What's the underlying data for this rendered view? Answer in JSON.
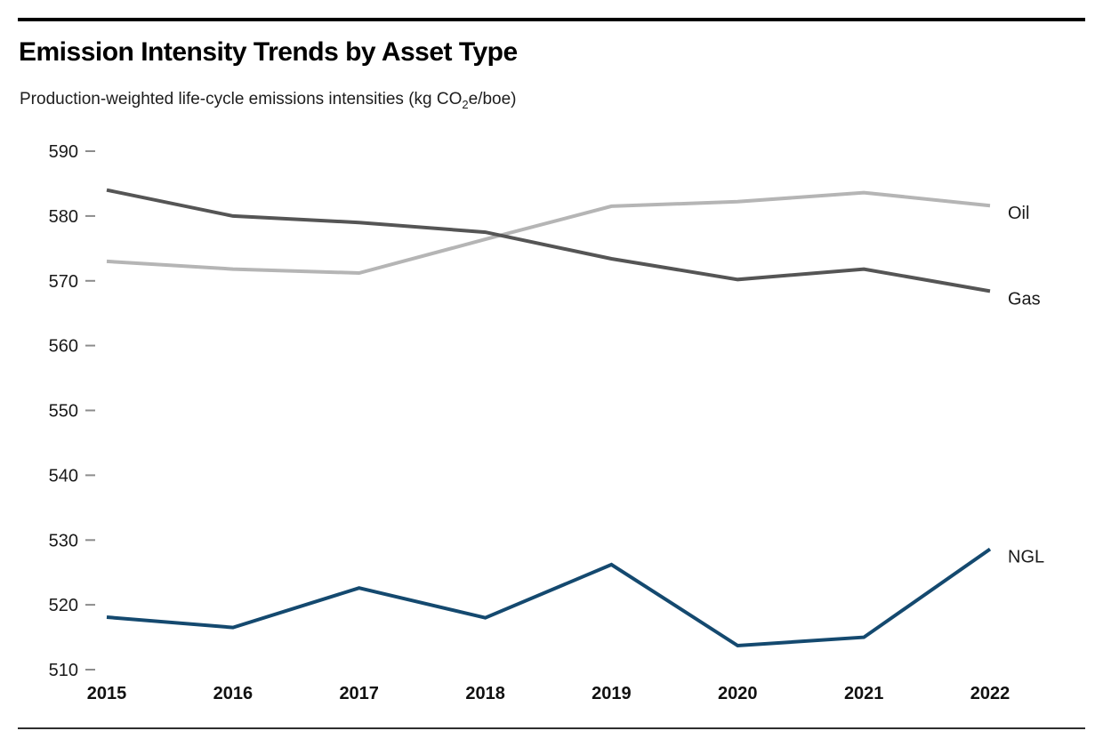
{
  "header": {
    "title": "Emission Intensity Trends by Asset Type",
    "subtitle_pre": "Production-weighted life-cycle emissions intensities (kg CO",
    "subtitle_sub": "2",
    "subtitle_post": "e/boe)"
  },
  "chart_data": {
    "type": "line",
    "title": "Emission Intensity Trends by Asset Type",
    "subtitle": "Production-weighted life-cycle emissions intensities (kg CO2e/boe)",
    "xlabel": "",
    "ylabel": "",
    "x": [
      2015,
      2016,
      2017,
      2018,
      2019,
      2020,
      2021,
      2022
    ],
    "x_tick_labels": [
      "2015",
      "2016",
      "2017",
      "2018",
      "2019",
      "2020",
      "2021",
      "2022"
    ],
    "ylim": [
      510,
      590
    ],
    "y_ticks": [
      590,
      580,
      570,
      560,
      550,
      540,
      530,
      520,
      510
    ],
    "grid": false,
    "legend_position": "direct-labels-right-of-lines",
    "series": [
      {
        "name": "Oil",
        "color": "#b5b5b5",
        "values": [
          573.0,
          571.8,
          571.2,
          576.4,
          581.5,
          582.2,
          583.6,
          581.6
        ]
      },
      {
        "name": "Gas",
        "color": "#555555",
        "values": [
          584.0,
          580.0,
          579.0,
          577.5,
          573.4,
          570.2,
          571.8,
          568.4
        ]
      },
      {
        "name": "NGL",
        "color": "#14496f",
        "values": [
          518.1,
          516.5,
          522.6,
          518.0,
          526.2,
          513.7,
          515.0,
          528.6
        ]
      }
    ],
    "axis_colors": {
      "tick_mark": "#8c8c8c",
      "tick_label": "#1a1a1a"
    }
  }
}
